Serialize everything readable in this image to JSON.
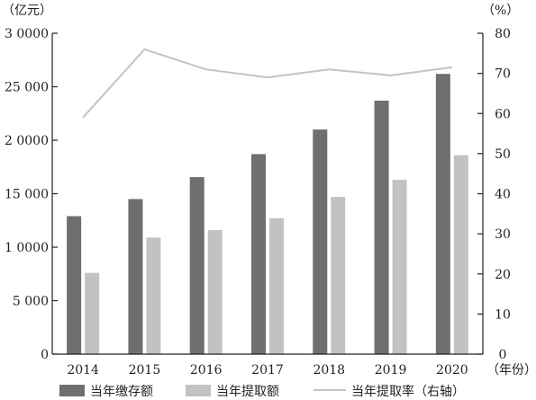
{
  "chart_data": {
    "type": "bar",
    "categories": [
      "2014",
      "2015",
      "2016",
      "2017",
      "2018",
      "2019",
      "2020"
    ],
    "series": [
      {
        "name": "当年缴存额",
        "type": "bar",
        "axis": "left",
        "color": "#6f6f6f",
        "values": [
          12900,
          14500,
          16550,
          18700,
          21000,
          23700,
          26200
        ]
      },
      {
        "name": "当年提取额",
        "type": "bar",
        "axis": "left",
        "color": "#c2c2c2",
        "values": [
          7600,
          10900,
          11600,
          12700,
          14700,
          16300,
          18600
        ]
      },
      {
        "name": "当年提取率（右轴）",
        "type": "line",
        "axis": "right",
        "color": "#c4c4c4",
        "values": [
          59,
          76,
          71,
          69,
          71,
          69.5,
          71.5
        ]
      }
    ],
    "left_axis": {
      "unit": "（亿元）",
      "ylim": [
        0,
        30000
      ],
      "ticks": [
        0,
        5000,
        10000,
        15000,
        20000,
        25000,
        30000
      ],
      "tick_labels": [
        "0",
        "5 000",
        "1 0000",
        "15 000",
        "2 0000",
        "25 000",
        "3 0000"
      ]
    },
    "right_axis": {
      "unit": "（%）",
      "ylim": [
        0,
        80
      ],
      "ticks": [
        0,
        10,
        20,
        30,
        40,
        50,
        60,
        70,
        80
      ],
      "tick_labels": [
        "0",
        "10",
        "20",
        "30",
        "40",
        "50",
        "60",
        "70",
        "80"
      ]
    },
    "x_axis": {
      "unit": "（年份）"
    },
    "grid": false,
    "legend_position": "bottom"
  }
}
